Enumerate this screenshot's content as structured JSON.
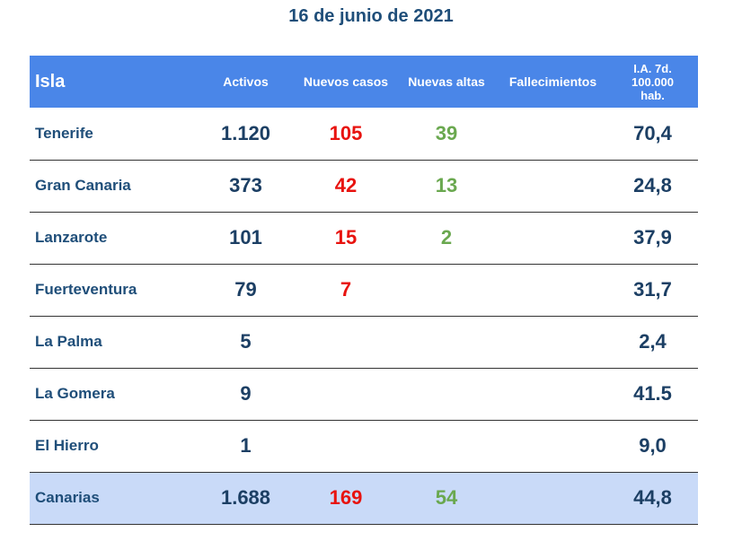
{
  "title": "16 de junio de 2021",
  "colors": {
    "header_bg": "#4A86E8",
    "total_row_bg": "#C9DAF8",
    "title": "#1F4E79",
    "nuevos_casos": "#E8130F",
    "nuevas_altas": "#6AA84F"
  },
  "table": {
    "headers": {
      "isla": "Isla",
      "activos": "Activos",
      "nuevos_casos": "Nuevos casos",
      "nuevas_altas": "Nuevas altas",
      "fallecimientos": "Fallecimientos",
      "ia_line1": "I.A. 7d.",
      "ia_line2": "100.000",
      "ia_line3": "hab."
    },
    "rows": [
      {
        "isla": "Tenerife",
        "activos": "1.120",
        "nuevos_casos": "105",
        "nuevas_altas": "39",
        "fallecimientos": "",
        "ia": "70,4"
      },
      {
        "isla": "Gran Canaria",
        "activos": "373",
        "nuevos_casos": "42",
        "nuevas_altas": "13",
        "fallecimientos": "",
        "ia": "24,8"
      },
      {
        "isla": "Lanzarote",
        "activos": "101",
        "nuevos_casos": "15",
        "nuevas_altas": "2",
        "fallecimientos": "",
        "ia": "37,9"
      },
      {
        "isla": "Fuerteventura",
        "activos": "79",
        "nuevos_casos": "7",
        "nuevas_altas": "",
        "fallecimientos": "",
        "ia": "31,7"
      },
      {
        "isla": "La Palma",
        "activos": "5",
        "nuevos_casos": "",
        "nuevas_altas": "",
        "fallecimientos": "",
        "ia": "2,4"
      },
      {
        "isla": "La Gomera",
        "activos": "9",
        "nuevos_casos": "",
        "nuevas_altas": "",
        "fallecimientos": "",
        "ia": "41.5"
      },
      {
        "isla": "El Hierro",
        "activos": "1",
        "nuevos_casos": "",
        "nuevas_altas": "",
        "fallecimientos": "",
        "ia": "9,0"
      },
      {
        "isla": "Canarias",
        "activos": "1.688",
        "nuevos_casos": "169",
        "nuevas_altas": "54",
        "fallecimientos": "",
        "ia": "44,8"
      }
    ]
  }
}
